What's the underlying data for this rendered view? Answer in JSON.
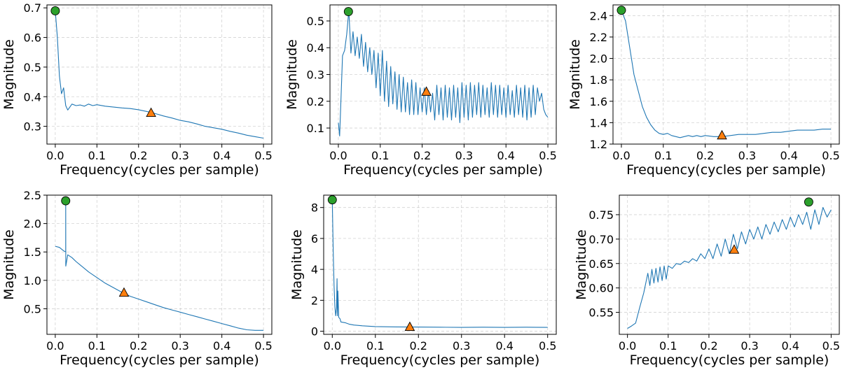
{
  "chart_data": [
    {
      "type": "line",
      "xlabel": "Frequency(cycles per sample)",
      "ylabel": "Magnitude",
      "xlim": [
        -0.02,
        0.52
      ],
      "ylim": [
        0.24,
        0.71
      ],
      "xticks": [
        0.0,
        0.1,
        0.2,
        0.3,
        0.4,
        0.5
      ],
      "xtick_labels": [
        "0.0",
        "0.1",
        "0.2",
        "0.3",
        "0.4",
        "0.5"
      ],
      "yticks": [
        0.3,
        0.4,
        0.5,
        0.6,
        0.7
      ],
      "ytick_labels": [
        "0.3",
        "0.4",
        "0.5",
        "0.6",
        "0.7"
      ],
      "grid": true,
      "series": [
        {
          "x": [
            0.0,
            0.005,
            0.01,
            0.015,
            0.02,
            0.025,
            0.03,
            0.04,
            0.05,
            0.06,
            0.07,
            0.08,
            0.09,
            0.1,
            0.12,
            0.14,
            0.16,
            0.18,
            0.2,
            0.22,
            0.24,
            0.26,
            0.28,
            0.3,
            0.32,
            0.34,
            0.36,
            0.38,
            0.4,
            0.42,
            0.44,
            0.46,
            0.48,
            0.5
          ],
          "y": [
            0.69,
            0.6,
            0.47,
            0.41,
            0.43,
            0.37,
            0.355,
            0.375,
            0.37,
            0.372,
            0.368,
            0.375,
            0.37,
            0.373,
            0.368,
            0.365,
            0.362,
            0.36,
            0.356,
            0.35,
            0.343,
            0.335,
            0.328,
            0.32,
            0.315,
            0.308,
            0.3,
            0.295,
            0.29,
            0.283,
            0.277,
            0.27,
            0.265,
            0.26
          ]
        }
      ],
      "max_marker": {
        "x": 0.0,
        "y": 0.69,
        "color": "#2ca02c"
      },
      "mean_marker": {
        "x": 0.23,
        "y": 0.345,
        "color": "#ff7f0e"
      }
    },
    {
      "type": "line",
      "xlabel": "Frequency(cycles per sample)",
      "ylabel": "Magnitude",
      "xlim": [
        -0.02,
        0.52
      ],
      "ylim": [
        0.04,
        0.56
      ],
      "xticks": [
        0.0,
        0.1,
        0.2,
        0.3,
        0.4,
        0.5
      ],
      "xtick_labels": [
        "0.0",
        "0.1",
        "0.2",
        "0.3",
        "0.4",
        "0.5"
      ],
      "yticks": [
        0.1,
        0.2,
        0.3,
        0.4,
        0.5
      ],
      "ytick_labels": [
        "0.1",
        "0.2",
        "0.3",
        "0.4",
        "0.5"
      ],
      "grid": true,
      "series": [
        {
          "x": [
            0.0,
            0.003,
            0.006,
            0.01,
            0.015,
            0.02,
            0.025,
            0.03,
            0.035,
            0.04,
            0.045,
            0.05,
            0.055,
            0.06,
            0.065,
            0.07,
            0.075,
            0.08,
            0.085,
            0.09,
            0.095,
            0.1,
            0.105,
            0.11,
            0.115,
            0.12,
            0.125,
            0.13,
            0.135,
            0.14,
            0.145,
            0.15,
            0.155,
            0.16,
            0.165,
            0.17,
            0.175,
            0.18,
            0.185,
            0.19,
            0.195,
            0.2,
            0.205,
            0.21,
            0.215,
            0.22,
            0.225,
            0.23,
            0.235,
            0.24,
            0.245,
            0.25,
            0.255,
            0.26,
            0.265,
            0.27,
            0.275,
            0.28,
            0.285,
            0.29,
            0.295,
            0.3,
            0.305,
            0.31,
            0.315,
            0.32,
            0.325,
            0.33,
            0.335,
            0.34,
            0.345,
            0.35,
            0.355,
            0.36,
            0.365,
            0.37,
            0.375,
            0.38,
            0.385,
            0.39,
            0.395,
            0.4,
            0.405,
            0.41,
            0.415,
            0.42,
            0.425,
            0.43,
            0.435,
            0.44,
            0.445,
            0.45,
            0.455,
            0.46,
            0.465,
            0.47,
            0.475,
            0.48,
            0.485,
            0.49,
            0.495,
            0.5
          ],
          "y": [
            0.12,
            0.07,
            0.2,
            0.37,
            0.39,
            0.45,
            0.54,
            0.38,
            0.46,
            0.37,
            0.44,
            0.36,
            0.45,
            0.33,
            0.42,
            0.31,
            0.4,
            0.3,
            0.39,
            0.25,
            0.38,
            0.22,
            0.39,
            0.2,
            0.35,
            0.18,
            0.33,
            0.19,
            0.31,
            0.17,
            0.3,
            0.16,
            0.29,
            0.16,
            0.27,
            0.15,
            0.28,
            0.15,
            0.27,
            0.15,
            0.25,
            0.16,
            0.25,
            0.15,
            0.24,
            0.16,
            0.23,
            0.13,
            0.26,
            0.15,
            0.25,
            0.13,
            0.26,
            0.14,
            0.25,
            0.13,
            0.26,
            0.14,
            0.25,
            0.12,
            0.27,
            0.14,
            0.26,
            0.13,
            0.27,
            0.14,
            0.26,
            0.15,
            0.27,
            0.14,
            0.26,
            0.15,
            0.25,
            0.14,
            0.27,
            0.15,
            0.26,
            0.14,
            0.26,
            0.15,
            0.25,
            0.14,
            0.26,
            0.15,
            0.24,
            0.14,
            0.26,
            0.15,
            0.25,
            0.14,
            0.26,
            0.13,
            0.25,
            0.14,
            0.26,
            0.15,
            0.25,
            0.2,
            0.23,
            0.17,
            0.15,
            0.14
          ]
        }
      ],
      "max_marker": {
        "x": 0.024,
        "y": 0.535,
        "color": "#2ca02c"
      },
      "mean_marker": {
        "x": 0.21,
        "y": 0.235,
        "color": "#ff7f0e"
      }
    },
    {
      "type": "line",
      "xlabel": "Frequency(cycles per sample)",
      "ylabel": "Magnitude",
      "xlim": [
        -0.02,
        0.52
      ],
      "ylim": [
        1.2,
        2.5
      ],
      "xticks": [
        0.0,
        0.1,
        0.2,
        0.3,
        0.4,
        0.5
      ],
      "xtick_labels": [
        "0.0",
        "0.1",
        "0.2",
        "0.3",
        "0.4",
        "0.5"
      ],
      "yticks": [
        1.2,
        1.4,
        1.6,
        1.8,
        2.0,
        2.2,
        2.4
      ],
      "ytick_labels": [
        "1.2",
        "1.4",
        "1.6",
        "1.8",
        "2.0",
        "2.2",
        "2.4"
      ],
      "grid": true,
      "series": [
        {
          "x": [
            0.0,
            0.01,
            0.02,
            0.03,
            0.04,
            0.05,
            0.06,
            0.07,
            0.08,
            0.09,
            0.1,
            0.11,
            0.12,
            0.13,
            0.14,
            0.15,
            0.16,
            0.17,
            0.18,
            0.19,
            0.2,
            0.22,
            0.24,
            0.26,
            0.28,
            0.3,
            0.32,
            0.34,
            0.36,
            0.38,
            0.4,
            0.42,
            0.44,
            0.46,
            0.48,
            0.5
          ],
          "y": [
            2.45,
            2.35,
            2.1,
            1.85,
            1.7,
            1.55,
            1.45,
            1.38,
            1.33,
            1.3,
            1.29,
            1.3,
            1.28,
            1.27,
            1.26,
            1.27,
            1.28,
            1.27,
            1.28,
            1.27,
            1.28,
            1.27,
            1.27,
            1.28,
            1.29,
            1.29,
            1.29,
            1.3,
            1.31,
            1.31,
            1.32,
            1.33,
            1.33,
            1.33,
            1.34,
            1.34
          ]
        }
      ],
      "max_marker": {
        "x": 0.0,
        "y": 2.45,
        "color": "#2ca02c"
      },
      "mean_marker": {
        "x": 0.24,
        "y": 1.28,
        "color": "#ff7f0e"
      }
    },
    {
      "type": "line",
      "xlabel": "Frequency(cycles per sample)",
      "ylabel": "Magnitude",
      "xlim": [
        -0.02,
        0.52
      ],
      "ylim": [
        0.05,
        2.5
      ],
      "xticks": [
        0.0,
        0.1,
        0.2,
        0.3,
        0.4,
        0.5
      ],
      "xtick_labels": [
        "0.0",
        "0.1",
        "0.2",
        "0.3",
        "0.4",
        "0.5"
      ],
      "yticks": [
        0.5,
        1.0,
        1.5,
        2.0,
        2.5
      ],
      "ytick_labels": [
        "0.5",
        "1.0",
        "1.5",
        "2.0",
        "2.5"
      ],
      "grid": true,
      "series": [
        {
          "x": [
            0.0,
            0.01,
            0.02,
            0.025,
            0.0251,
            0.0252,
            0.03,
            0.04,
            0.05,
            0.06,
            0.08,
            0.1,
            0.12,
            0.14,
            0.16,
            0.18,
            0.2,
            0.22,
            0.24,
            0.26,
            0.28,
            0.3,
            0.32,
            0.34,
            0.36,
            0.38,
            0.4,
            0.42,
            0.44,
            0.46,
            0.48,
            0.5
          ],
          "y": [
            1.6,
            1.58,
            1.52,
            1.5,
            2.4,
            1.25,
            1.45,
            1.4,
            1.33,
            1.27,
            1.15,
            1.05,
            0.95,
            0.87,
            0.79,
            0.72,
            0.67,
            0.62,
            0.57,
            0.52,
            0.48,
            0.44,
            0.4,
            0.36,
            0.32,
            0.28,
            0.24,
            0.2,
            0.16,
            0.13,
            0.12,
            0.12
          ]
        }
      ],
      "max_marker": {
        "x": 0.025,
        "y": 2.4,
        "color": "#2ca02c"
      },
      "mean_marker": {
        "x": 0.165,
        "y": 0.78,
        "color": "#ff7f0e"
      }
    },
    {
      "type": "line",
      "xlabel": "Frequency(cycles per sample)",
      "ylabel": "Magnitude",
      "xlim": [
        -0.02,
        0.52
      ],
      "ylim": [
        -0.2,
        8.8
      ],
      "xticks": [
        0.0,
        0.1,
        0.2,
        0.3,
        0.4,
        0.5
      ],
      "xtick_labels": [
        "0.0",
        "0.1",
        "0.2",
        "0.3",
        "0.4",
        "0.5"
      ],
      "yticks": [
        0,
        2,
        4,
        6,
        8
      ],
      "ytick_labels": [
        "0",
        "2",
        "4",
        "6",
        "8"
      ],
      "grid": true,
      "series": [
        {
          "x": [
            0.0,
            0.002,
            0.004,
            0.006,
            0.008,
            0.01,
            0.011,
            0.012,
            0.013,
            0.015,
            0.018,
            0.02,
            0.03,
            0.04,
            0.05,
            0.07,
            0.1,
            0.15,
            0.2,
            0.25,
            0.3,
            0.35,
            0.4,
            0.45,
            0.5
          ],
          "y": [
            8.5,
            5.5,
            3.0,
            1.6,
            1.0,
            1.5,
            3.4,
            1.0,
            2.6,
            0.9,
            0.8,
            0.6,
            0.55,
            0.45,
            0.4,
            0.35,
            0.3,
            0.28,
            0.27,
            0.26,
            0.25,
            0.26,
            0.25,
            0.26,
            0.25
          ]
        }
      ],
      "max_marker": {
        "x": 0.0,
        "y": 8.5,
        "color": "#2ca02c"
      },
      "mean_marker": {
        "x": 0.18,
        "y": 0.27,
        "color": "#ff7f0e"
      }
    },
    {
      "type": "line",
      "xlabel": "Frequency(cycles per sample)",
      "ylabel": "Magnitude",
      "xlim": [
        -0.02,
        0.52
      ],
      "ylim": [
        0.505,
        0.79
      ],
      "xticks": [
        0.0,
        0.1,
        0.2,
        0.3,
        0.4,
        0.5
      ],
      "xtick_labels": [
        "0.0",
        "0.1",
        "0.2",
        "0.3",
        "0.4",
        "0.5"
      ],
      "yticks": [
        0.55,
        0.6,
        0.65,
        0.7,
        0.75
      ],
      "ytick_labels": [
        "0.55",
        "0.60",
        "0.65",
        "0.70",
        "0.75"
      ],
      "grid": true,
      "series": [
        {
          "x": [
            0.0,
            0.01,
            0.02,
            0.03,
            0.04,
            0.05,
            0.055,
            0.06,
            0.065,
            0.07,
            0.075,
            0.08,
            0.085,
            0.09,
            0.095,
            0.1,
            0.11,
            0.12,
            0.13,
            0.14,
            0.15,
            0.16,
            0.17,
            0.18,
            0.19,
            0.2,
            0.21,
            0.22,
            0.23,
            0.24,
            0.25,
            0.26,
            0.27,
            0.28,
            0.29,
            0.3,
            0.31,
            0.32,
            0.33,
            0.34,
            0.35,
            0.36,
            0.37,
            0.38,
            0.39,
            0.4,
            0.41,
            0.42,
            0.43,
            0.44,
            0.45,
            0.46,
            0.47,
            0.48,
            0.49,
            0.5
          ],
          "y": [
            0.517,
            0.522,
            0.528,
            0.56,
            0.59,
            0.63,
            0.605,
            0.638,
            0.61,
            0.64,
            0.612,
            0.643,
            0.615,
            0.645,
            0.618,
            0.645,
            0.64,
            0.65,
            0.648,
            0.655,
            0.652,
            0.66,
            0.655,
            0.67,
            0.66,
            0.68,
            0.66,
            0.69,
            0.665,
            0.7,
            0.67,
            0.71,
            0.68,
            0.715,
            0.69,
            0.72,
            0.7,
            0.725,
            0.7,
            0.73,
            0.71,
            0.735,
            0.715,
            0.74,
            0.72,
            0.745,
            0.725,
            0.75,
            0.73,
            0.755,
            0.72,
            0.76,
            0.73,
            0.765,
            0.745,
            0.76
          ]
        }
      ],
      "max_marker": {
        "x": 0.445,
        "y": 0.776,
        "color": "#2ca02c"
      },
      "mean_marker": {
        "x": 0.262,
        "y": 0.678,
        "color": "#ff7f0e"
      }
    }
  ]
}
